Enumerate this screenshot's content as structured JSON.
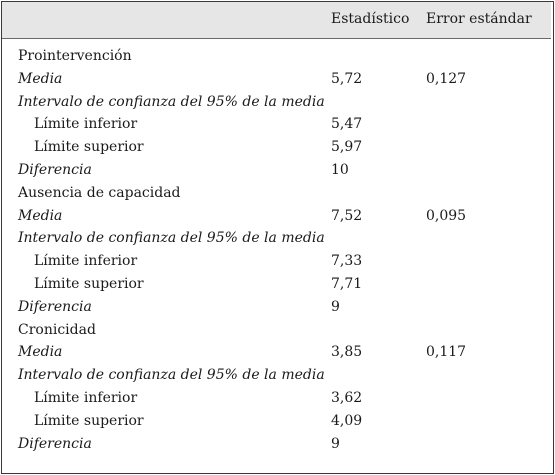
{
  "table": {
    "headers": {
      "statistic": "Estadístico",
      "std_error": "Error estándar"
    },
    "rows": [
      {
        "label": "Prointervención",
        "style": "section",
        "statistic": "",
        "std_error": ""
      },
      {
        "label": "Media",
        "style": "italic",
        "statistic": "5,72",
        "std_error": "0,127"
      },
      {
        "label": "Intervalo de confianza del 95% de la media",
        "style": "italic",
        "statistic": "",
        "std_error": ""
      },
      {
        "label": "Límite inferior",
        "style": "indent",
        "statistic": "5,47",
        "std_error": ""
      },
      {
        "label": "Límite superior",
        "style": "indent",
        "statistic": "5,97",
        "std_error": ""
      },
      {
        "label": "Diferencia",
        "style": "italic",
        "statistic": "10",
        "std_error": ""
      },
      {
        "label": "Ausencia de capacidad",
        "style": "section",
        "statistic": "",
        "std_error": ""
      },
      {
        "label": "Media",
        "style": "italic",
        "statistic": "7,52",
        "std_error": "0,095"
      },
      {
        "label": "Intervalo de confianza del 95% de la media",
        "style": "italic",
        "statistic": "",
        "std_error": ""
      },
      {
        "label": "Límite inferior",
        "style": "indent",
        "statistic": "7,33",
        "std_error": ""
      },
      {
        "label": "Límite superior",
        "style": "indent",
        "statistic": "7,71",
        "std_error": ""
      },
      {
        "label": "Diferencia",
        "style": "italic",
        "statistic": "9",
        "std_error": ""
      },
      {
        "label": "Cronicidad",
        "style": "section",
        "statistic": "",
        "std_error": ""
      },
      {
        "label": "Media",
        "style": "italic",
        "statistic": "3,85",
        "std_error": "0,117"
      },
      {
        "label": "Intervalo de confianza del 95% de la media",
        "style": "italic",
        "statistic": "",
        "std_error": ""
      },
      {
        "label": "Límite inferior",
        "style": "indent",
        "statistic": "3,62",
        "std_error": ""
      },
      {
        "label": "Límite superior",
        "style": "indent",
        "statistic": "4,09",
        "std_error": ""
      },
      {
        "label": "Diferencia",
        "style": "italic",
        "statistic": "9",
        "std_error": ""
      }
    ]
  }
}
